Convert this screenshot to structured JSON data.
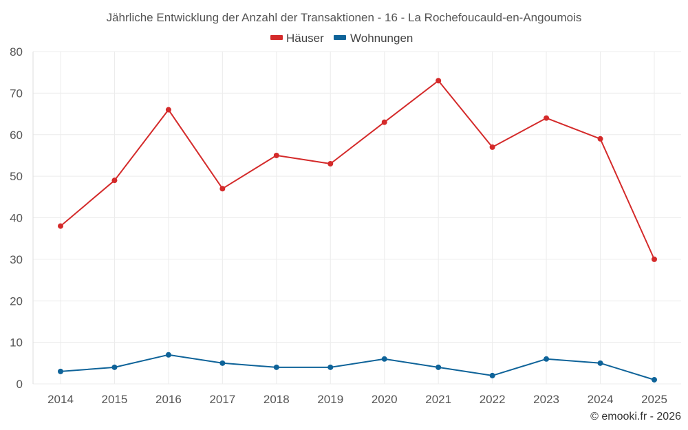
{
  "chart_data": {
    "type": "line",
    "title": "Jährliche Entwicklung der Anzahl der Transaktionen - 16 - La Rochefoucauld-en-Angoumois",
    "categories": [
      "2014",
      "2015",
      "2016",
      "2017",
      "2018",
      "2019",
      "2020",
      "2021",
      "2022",
      "2023",
      "2024",
      "2025"
    ],
    "series": [
      {
        "name": "Häuser",
        "color": "#d42a2a",
        "values": [
          38,
          49,
          66,
          47,
          55,
          53,
          63,
          73,
          57,
          64,
          59,
          30
        ]
      },
      {
        "name": "Wohnungen",
        "color": "#0e6399",
        "values": [
          3,
          4,
          7,
          5,
          4,
          4,
          6,
          4,
          2,
          6,
          5,
          1
        ]
      }
    ],
    "ylim": [
      0,
      80
    ],
    "yticks": [
      0,
      10,
      20,
      30,
      40,
      50,
      60,
      70,
      80
    ],
    "xlabel": "",
    "ylabel": "",
    "grid": true,
    "legend": "top-center"
  },
  "credit": "© emooki.fr - 2026"
}
